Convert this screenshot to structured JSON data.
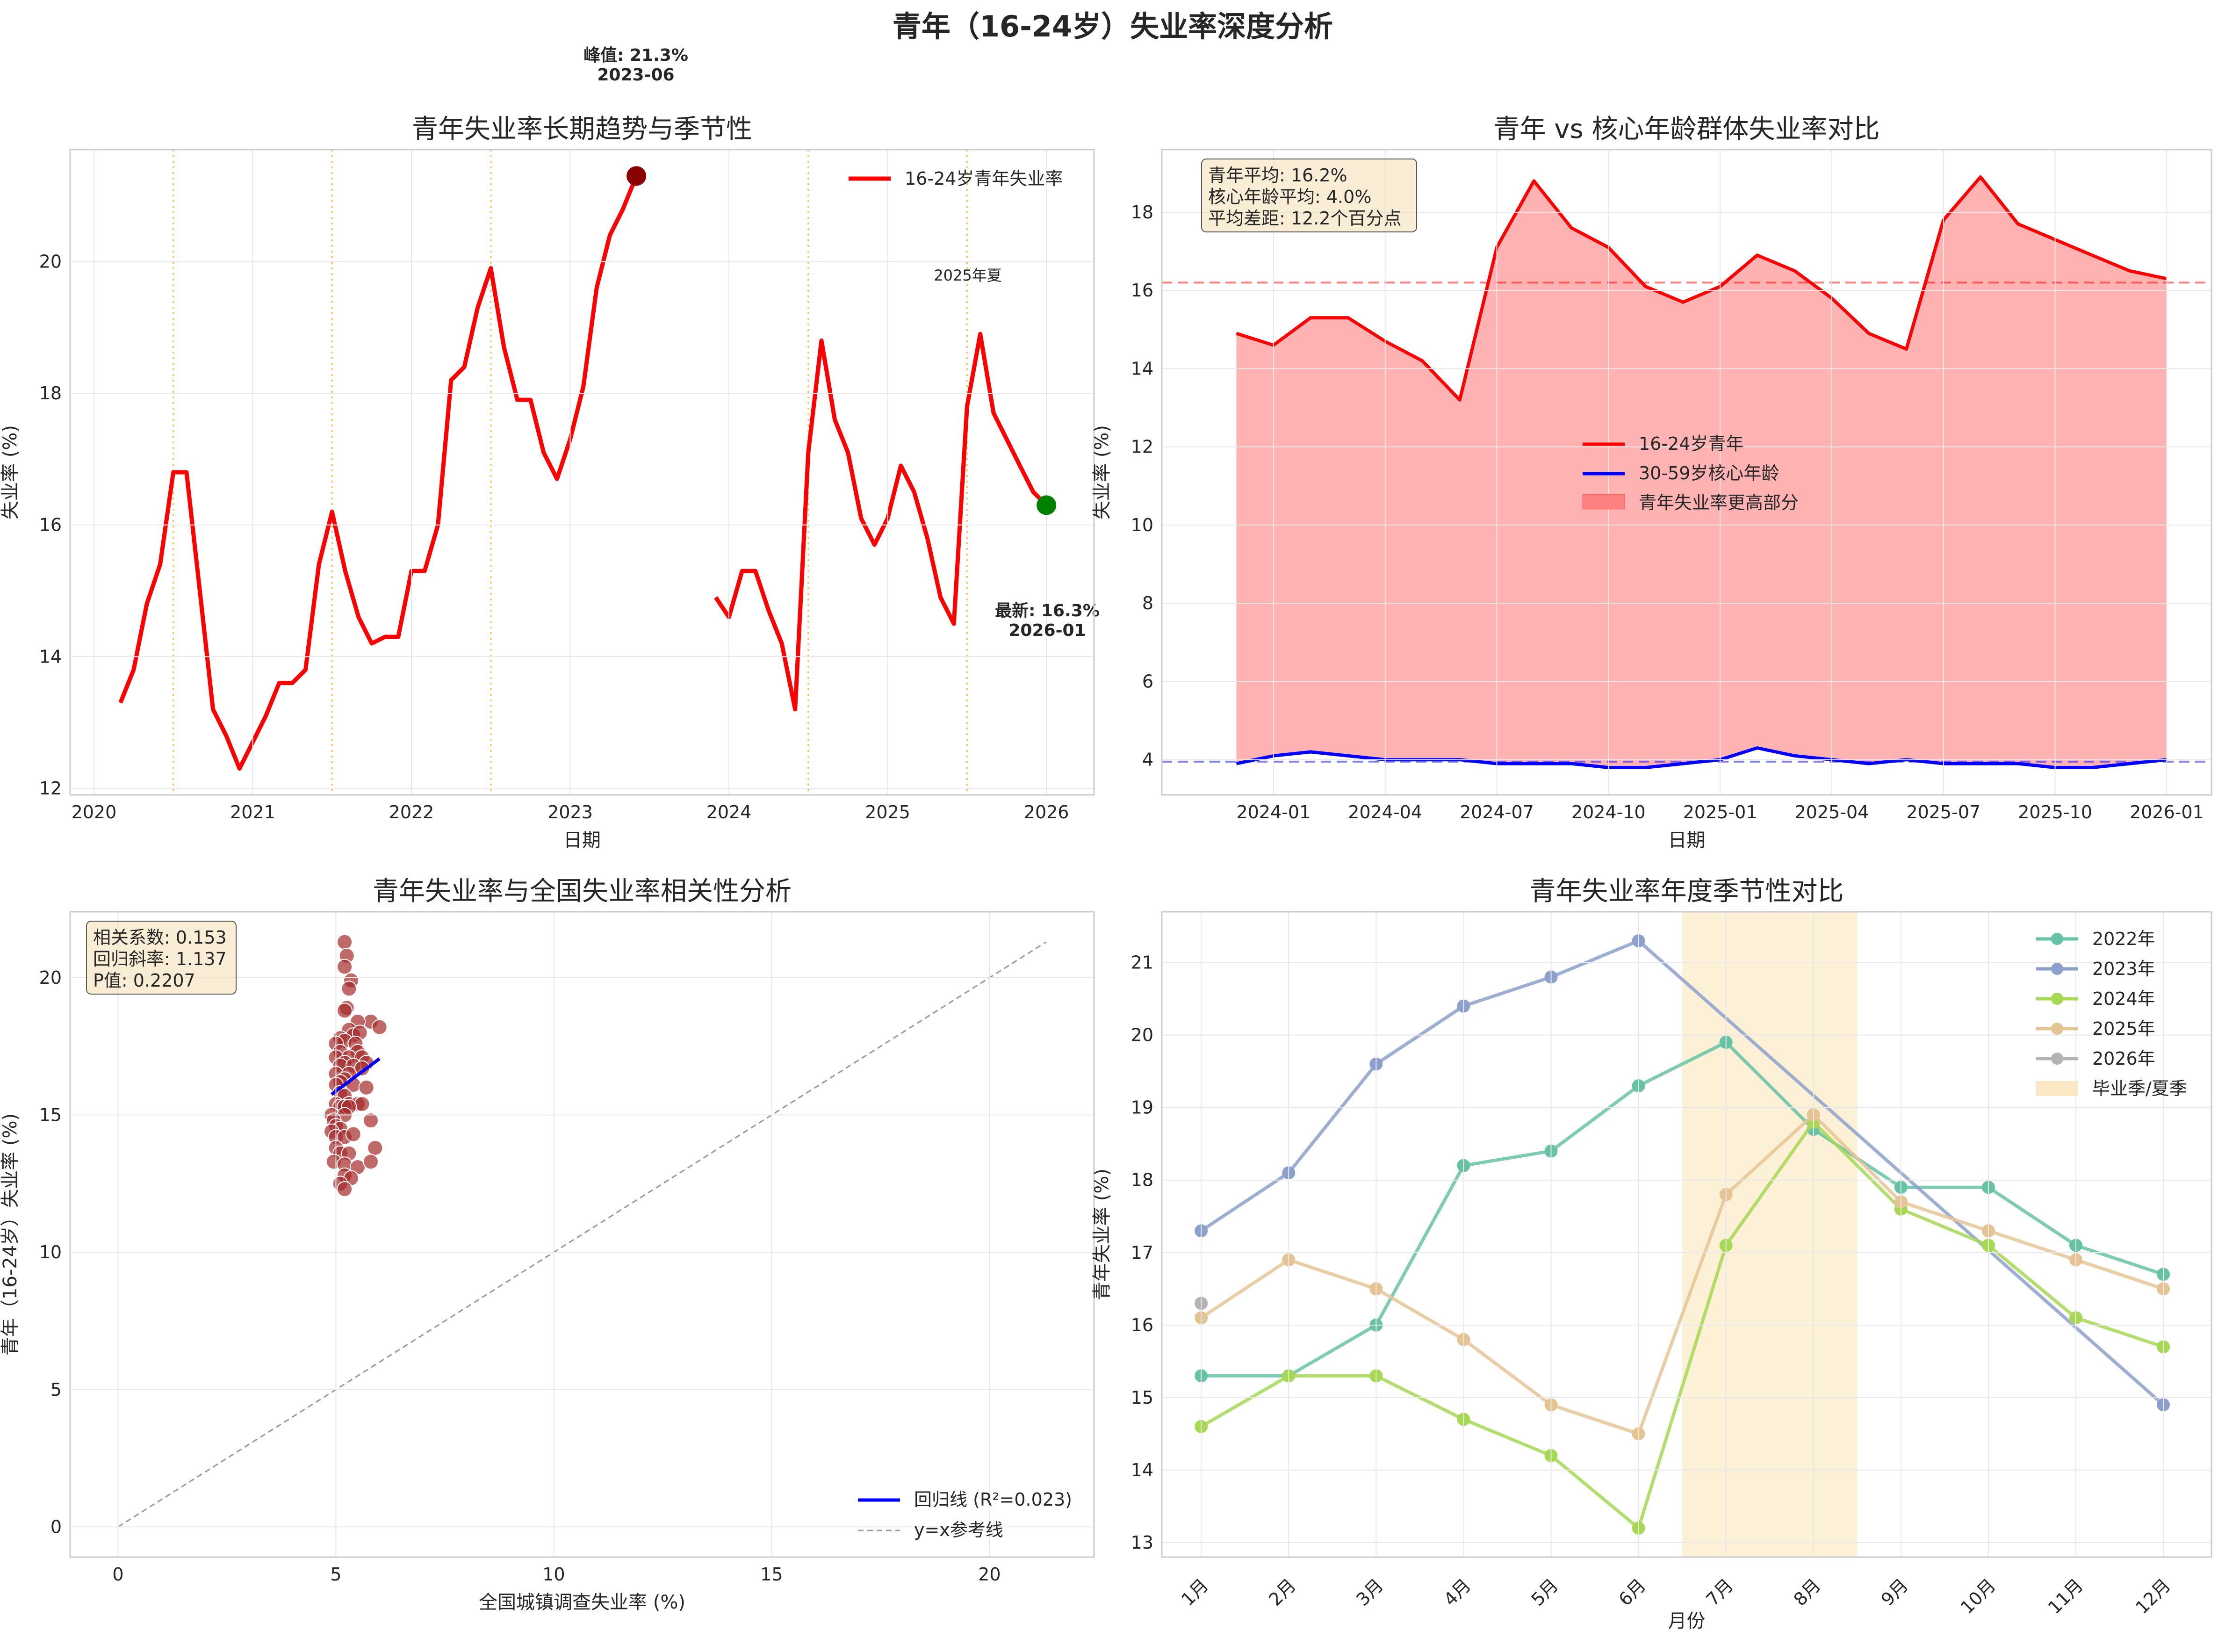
{
  "figure": {
    "suptitle": "青年（16-24岁）失业率深度分析"
  },
  "chart_data": [
    {
      "type": "line",
      "title": "青年失业率长期趋势与季节性",
      "xlabel": "日期",
      "ylabel": "失业率 (%)",
      "xlim": [
        2019.85,
        2026.3
      ],
      "ylim": [
        11.9,
        21.7
      ],
      "xticks": [
        2020,
        2021,
        2022,
        2023,
        2024,
        2025,
        2026
      ],
      "xtick_labels": [
        "2020",
        "2021",
        "2022",
        "2023",
        "2024",
        "2025",
        "2026"
      ],
      "yticks": [
        12,
        14,
        16,
        18,
        20
      ],
      "grid": true,
      "legend_position": "top-right",
      "series": [
        {
          "name": "16-24岁青年失业率",
          "color": "#ff0000",
          "segments": [
            {
              "x": [
                2020.167,
                2020.25,
                2020.333,
                2020.417,
                2020.5,
                2020.583,
                2020.667,
                2020.75,
                2020.833,
                2020.917,
                2021.0,
                2021.083,
                2021.167,
                2021.25,
                2021.333,
                2021.417,
                2021.5,
                2021.583,
                2021.667,
                2021.75,
                2021.833,
                2021.917,
                2022.0,
                2022.083,
                2022.167,
                2022.25,
                2022.333,
                2022.417,
                2022.5,
                2022.583,
                2022.667,
                2022.75,
                2022.833,
                2022.917,
                2023.0,
                2023.083,
                2023.167,
                2023.25,
                2023.333,
                2023.417
              ],
              "y": [
                13.3,
                13.8,
                14.8,
                15.4,
                16.8,
                16.8,
                15.0,
                13.2,
                12.8,
                12.3,
                12.7,
                13.1,
                13.6,
                13.6,
                13.8,
                15.4,
                16.2,
                15.3,
                14.6,
                14.2,
                14.3,
                14.3,
                15.3,
                15.3,
                16.0,
                18.2,
                18.4,
                19.3,
                19.9,
                18.7,
                17.9,
                17.9,
                17.1,
                16.7,
                17.3,
                18.1,
                19.6,
                20.4,
                20.8,
                21.3
              ]
            },
            {
              "x": [
                2023.917,
                2024.0,
                2024.083,
                2024.167,
                2024.25,
                2024.333,
                2024.417,
                2024.5,
                2024.583,
                2024.667,
                2024.75,
                2024.833,
                2024.917,
                2025.0,
                2025.083,
                2025.167,
                2025.25,
                2025.333,
                2025.417,
                2025.5,
                2025.583,
                2025.667,
                2025.75,
                2025.833,
                2025.917,
                2026.0
              ],
              "y": [
                14.9,
                14.6,
                15.3,
                15.3,
                14.7,
                14.2,
                13.2,
                17.1,
                18.8,
                17.6,
                17.1,
                16.1,
                15.7,
                16.1,
                16.9,
                16.5,
                15.8,
                14.9,
                14.5,
                17.8,
                18.9,
                17.7,
                17.3,
                16.9,
                16.5,
                16.3
              ]
            }
          ]
        }
      ],
      "summer_lines_x": [
        2020.5,
        2021.5,
        2022.5,
        2024.5,
        2025.5
      ],
      "annotations": [
        {
          "text": "峰值: 21.3%",
          "text2": "2023-06",
          "x": 2023.417,
          "y": 21.3,
          "marker_color": "#8b0000"
        },
        {
          "text": "最新: 16.3%",
          "text2": "2026-01",
          "x": 2026.0,
          "y": 16.3,
          "marker_color": "#008000"
        },
        {
          "text": "2025年夏",
          "color": "#ffa500"
        }
      ]
    },
    {
      "type": "area",
      "title": "青年 vs 核心年龄群体失业率对比",
      "xlabel": "日期",
      "ylabel": "失业率 (%)",
      "xlim": [
        2023.75,
        2026.1
      ],
      "ylim": [
        3.1,
        19.6
      ],
      "xticks": [
        2024.0,
        2024.25,
        2024.5,
        2024.75,
        2025.0,
        2025.25,
        2025.5,
        2025.75,
        2026.0
      ],
      "xtick_labels": [
        "2024-01",
        "2024-04",
        "2024-07",
        "2024-10",
        "2025-01",
        "2025-04",
        "2025-07",
        "2025-10",
        "2026-01"
      ],
      "yticks": [
        4,
        6,
        8,
        10,
        12,
        14,
        16,
        18
      ],
      "grid": true,
      "legend_position": "center",
      "x": [
        2023.917,
        2024.0,
        2024.083,
        2024.167,
        2024.25,
        2024.333,
        2024.417,
        2024.5,
        2024.583,
        2024.667,
        2024.75,
        2024.833,
        2024.917,
        2025.0,
        2025.083,
        2025.167,
        2025.25,
        2025.333,
        2025.417,
        2025.5,
        2025.583,
        2025.667,
        2025.75,
        2025.833,
        2025.917,
        2026.0
      ],
      "series": [
        {
          "name": "16-24岁青年",
          "color": "#ff0000",
          "values": [
            14.9,
            14.6,
            15.3,
            15.3,
            14.7,
            14.2,
            13.2,
            17.1,
            18.8,
            17.6,
            17.1,
            16.1,
            15.7,
            16.1,
            16.9,
            16.5,
            15.8,
            14.9,
            14.5,
            17.8,
            18.9,
            17.7,
            17.3,
            16.9,
            16.5,
            16.3
          ]
        },
        {
          "name": "30-59岁核心年龄",
          "color": "#0000ff",
          "values": [
            3.9,
            4.1,
            4.2,
            4.1,
            4.0,
            4.0,
            4.0,
            3.9,
            3.9,
            3.9,
            3.8,
            3.8,
            3.9,
            4.0,
            4.3,
            4.1,
            4.0,
            3.9,
            4.0,
            3.9,
            3.9,
            3.9,
            3.8,
            3.8,
            3.9,
            4.0
          ]
        }
      ],
      "fill_label": "青年失业率更高部分",
      "fill_color": "#ff0000",
      "mean_lines": [
        16.2,
        3.95
      ],
      "stats_box": [
        "青年平均: 16.2%",
        "核心年龄平均: 4.0%",
        "平均差距: 12.2个百分点"
      ]
    },
    {
      "type": "scatter",
      "title": "青年失业率与全国失业率相关性分析",
      "xlabel": "全国城镇调查失业率 (%)",
      "ylabel": "青年（16-24岁）失业率 (%)",
      "xlim": [
        -1.1,
        22.4
      ],
      "ylim": [
        -1.1,
        22.4
      ],
      "xticks": [
        0,
        5,
        10,
        15,
        20
      ],
      "yticks": [
        0,
        5,
        10,
        15,
        20
      ],
      "grid": true,
      "legend_position": "bottom-right",
      "points": [
        [
          5.2,
          21.3
        ],
        [
          5.25,
          20.8
        ],
        [
          5.2,
          20.4
        ],
        [
          5.35,
          19.9
        ],
        [
          5.3,
          19.6
        ],
        [
          5.25,
          18.9
        ],
        [
          5.2,
          18.8
        ],
        [
          5.8,
          18.4
        ],
        [
          5.5,
          18.4
        ],
        [
          6.0,
          18.2
        ],
        [
          5.3,
          18.1
        ],
        [
          5.4,
          17.9
        ],
        [
          5.55,
          18.0
        ],
        [
          5.1,
          17.8
        ],
        [
          5.2,
          17.7
        ],
        [
          5.45,
          17.6
        ],
        [
          5.0,
          17.6
        ],
        [
          5.1,
          17.3
        ],
        [
          5.5,
          17.3
        ],
        [
          5.3,
          17.1
        ],
        [
          5.6,
          17.1
        ],
        [
          5.0,
          17.1
        ],
        [
          5.2,
          16.9
        ],
        [
          5.7,
          16.9
        ],
        [
          5.1,
          16.8
        ],
        [
          5.4,
          16.8
        ],
        [
          5.6,
          16.7
        ],
        [
          5.0,
          16.5
        ],
        [
          5.3,
          16.5
        ],
        [
          5.2,
          16.3
        ],
        [
          5.1,
          16.2
        ],
        [
          5.0,
          16.1
        ],
        [
          5.4,
          16.1
        ],
        [
          5.7,
          16.0
        ],
        [
          5.1,
          15.8
        ],
        [
          5.2,
          15.7
        ],
        [
          5.0,
          15.4
        ],
        [
          5.3,
          15.4
        ],
        [
          5.5,
          15.4
        ],
        [
          5.6,
          15.4
        ],
        [
          5.1,
          15.3
        ],
        [
          5.2,
          15.3
        ],
        [
          5.3,
          15.3
        ],
        [
          4.9,
          15.0
        ],
        [
          5.2,
          15.0
        ],
        [
          5.8,
          14.8
        ],
        [
          4.95,
          14.8
        ],
        [
          5.0,
          14.6
        ],
        [
          5.1,
          14.5
        ],
        [
          4.9,
          14.4
        ],
        [
          5.0,
          14.2
        ],
        [
          5.2,
          14.2
        ],
        [
          5.4,
          14.3
        ],
        [
          5.0,
          13.8
        ],
        [
          5.9,
          13.8
        ],
        [
          5.1,
          13.6
        ],
        [
          5.3,
          13.6
        ],
        [
          4.95,
          13.3
        ],
        [
          5.2,
          13.2
        ],
        [
          5.5,
          13.1
        ],
        [
          5.8,
          13.3
        ],
        [
          5.2,
          12.8
        ],
        [
          5.35,
          12.7
        ],
        [
          5.1,
          12.5
        ],
        [
          5.2,
          12.3
        ]
      ],
      "point_color": "#a52a2a",
      "regression": {
        "name": "回归线 (R²=0.023)",
        "x": [
          4.9,
          6.0
        ],
        "y": [
          15.75,
          17.05
        ],
        "color": "#0000ff"
      },
      "reference": {
        "name": "y=x参考线",
        "x": [
          0,
          21.3
        ],
        "y": [
          0,
          21.3
        ],
        "color": "#999999"
      },
      "stats_box": [
        "相关系数: 0.153",
        "回归斜率: 1.137",
        "P值: 0.2207"
      ]
    },
    {
      "type": "line",
      "title": "青年失业率年度季节性对比",
      "xlabel": "月份",
      "ylabel": "青年失业率 (%)",
      "ylim": [
        12.8,
        21.7
      ],
      "yticks": [
        13,
        14,
        15,
        16,
        17,
        18,
        19,
        20,
        21
      ],
      "categories": [
        "1月",
        "2月",
        "3月",
        "4月",
        "5月",
        "6月",
        "7月",
        "8月",
        "9月",
        "10月",
        "11月",
        "12月"
      ],
      "grid": true,
      "legend_position": "top-right",
      "series": [
        {
          "name": "2022年",
          "color": "#66c2a5",
          "values": [
            15.3,
            15.3,
            16.0,
            18.2,
            18.4,
            19.3,
            19.9,
            18.7,
            17.9,
            17.9,
            17.1,
            16.7
          ]
        },
        {
          "name": "2023年",
          "color": "#8da0cb",
          "values": [
            17.3,
            18.1,
            19.6,
            20.4,
            20.8,
            21.3,
            null,
            null,
            null,
            null,
            null,
            14.9
          ]
        },
        {
          "name": "2024年",
          "color": "#a6d854",
          "values": [
            14.6,
            15.3,
            15.3,
            14.7,
            14.2,
            13.2,
            17.1,
            18.8,
            17.6,
            17.1,
            16.1,
            15.7
          ]
        },
        {
          "name": "2025年",
          "color": "#e5c494",
          "values": [
            16.1,
            16.9,
            16.5,
            15.8,
            14.9,
            14.5,
            17.8,
            18.9,
            17.7,
            17.3,
            16.9,
            16.5
          ]
        },
        {
          "name": "2026年",
          "color": "#b3b3b3",
          "values": [
            16.3,
            null,
            null,
            null,
            null,
            null,
            null,
            null,
            null,
            null,
            null,
            null
          ]
        }
      ],
      "band": {
        "name": "毕业季/夏季",
        "from": 6.5,
        "to": 8.5,
        "color": "#fbe9c6"
      }
    }
  ]
}
